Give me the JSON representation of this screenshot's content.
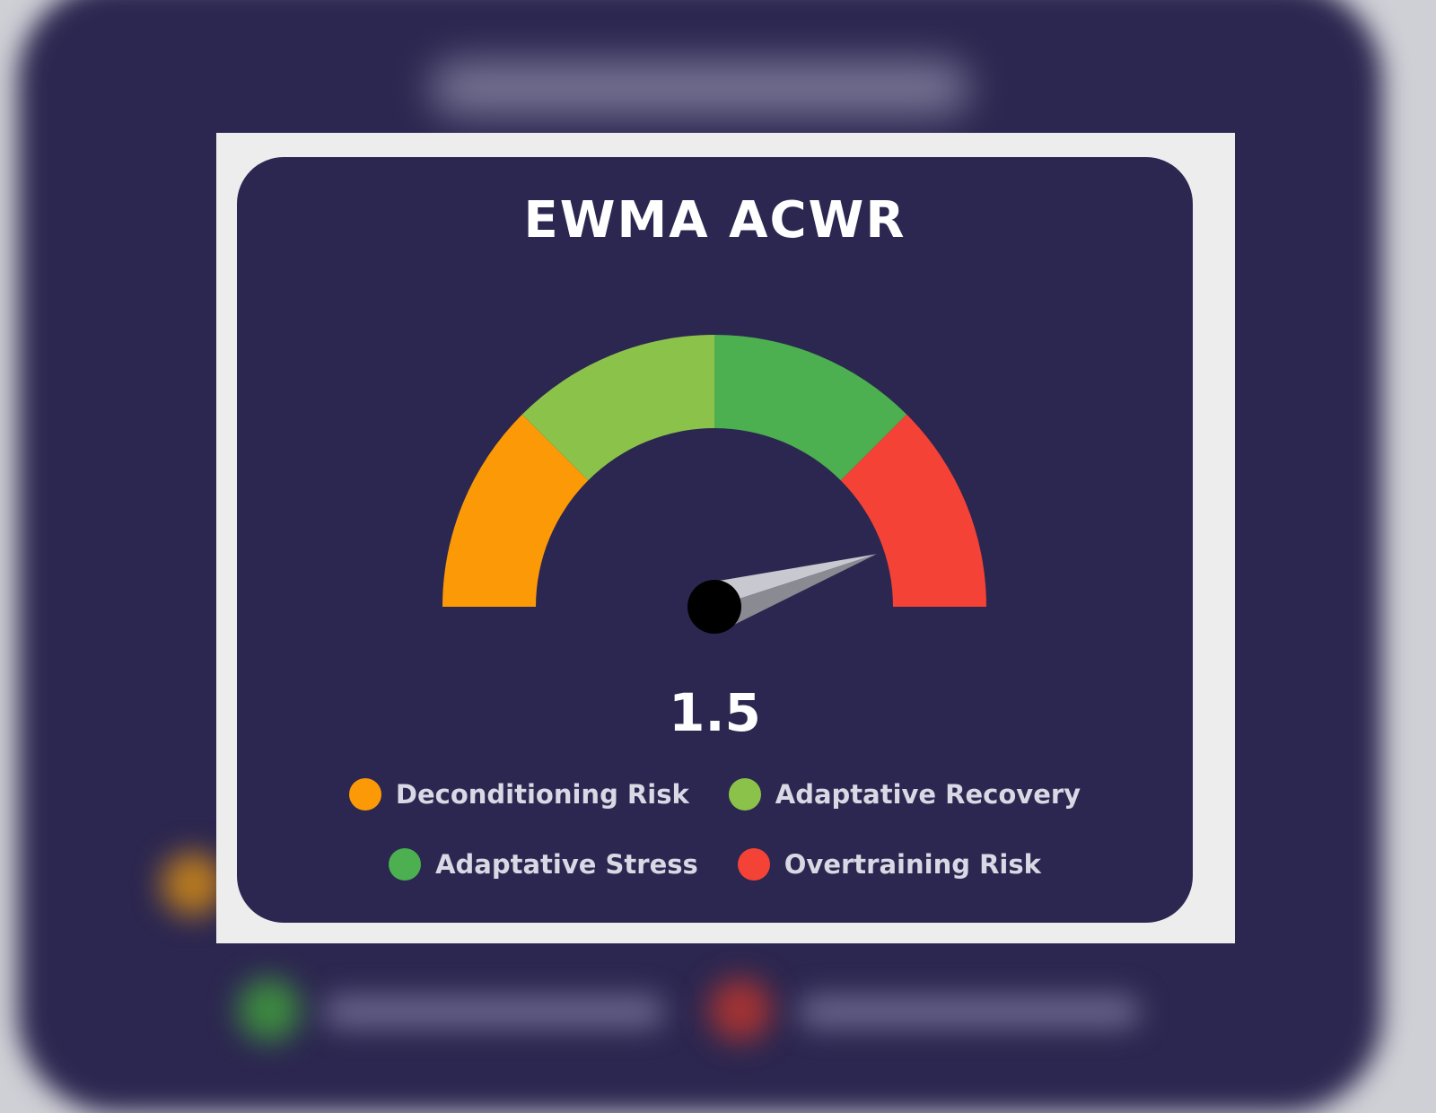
{
  "chart_data": {
    "type": "gauge",
    "title": "EWMA ACWR",
    "value": 1.5,
    "value_label": "1.5",
    "needle_position": 0.9,
    "segments": [
      {
        "name": "Deconditioning Risk",
        "color": "#fb9a06"
      },
      {
        "name": "Adaptative Recovery",
        "color": "#8bc34a"
      },
      {
        "name": "Adaptative Stress",
        "color": "#4caf50"
      },
      {
        "name": "Overtraining Risk",
        "color": "#f44336"
      }
    ],
    "legend_placement": "bottom"
  },
  "colors": {
    "card_background": "#2c2750",
    "frame": "#ededed",
    "needle": "#b8b8c0",
    "hub": "#000000"
  }
}
